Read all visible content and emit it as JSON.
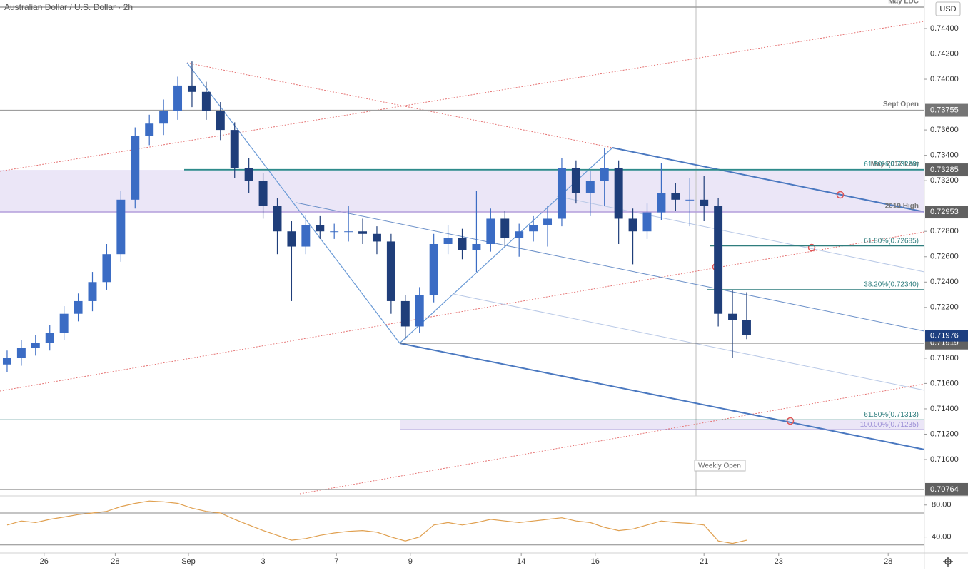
{
  "chart_data": {
    "type": "candlestick",
    "title": "Australian Dollar / U.S. Dollar · 2h",
    "currency": "USD",
    "up_color": "#3b6cc4",
    "down_color": "#1f3e7a",
    "xlim": [
      0,
      65
    ],
    "xticks": [
      {
        "value": 3.1,
        "label": "26"
      },
      {
        "value": 8.1,
        "label": "28"
      },
      {
        "value": 13.25,
        "label": "Sep"
      },
      {
        "value": 18.5,
        "label": "3"
      },
      {
        "value": 23.65,
        "label": "7"
      },
      {
        "value": 28.85,
        "label": "9"
      },
      {
        "value": 36.65,
        "label": "14"
      },
      {
        "value": 41.85,
        "label": "16"
      },
      {
        "value": 49.5,
        "label": "21"
      },
      {
        "value": 54.75,
        "label": "23"
      },
      {
        "value": 62.45,
        "label": "28"
      }
    ],
    "ylim": [
      0.70713,
      0.74625
    ],
    "yticks": [
      {
        "value": 0.744,
        "label": "0.74400"
      },
      {
        "value": 0.742,
        "label": "0.74200"
      },
      {
        "value": 0.74,
        "label": "0.74000"
      },
      {
        "value": 0.736,
        "label": "0.73600"
      },
      {
        "value": 0.734,
        "label": "0.73400"
      },
      {
        "value": 0.732,
        "label": "0.73200"
      },
      {
        "value": 0.728,
        "label": "0.72800"
      },
      {
        "value": 0.726,
        "label": "0.72600"
      },
      {
        "value": 0.724,
        "label": "0.72400"
      },
      {
        "value": 0.722,
        "label": "0.72200"
      },
      {
        "value": 0.718,
        "label": "0.71800"
      },
      {
        "value": 0.716,
        "label": "0.71600"
      },
      {
        "value": 0.714,
        "label": "0.71400"
      },
      {
        "value": 0.712,
        "label": "0.71200"
      },
      {
        "value": 0.71,
        "label": "0.71000"
      }
    ],
    "open": [
      0.7175,
      0.718,
      0.7188,
      0.7192,
      0.72,
      0.7215,
      0.7225,
      0.724,
      0.7262,
      0.7305,
      0.7355,
      0.7365,
      0.7375,
      0.7395,
      0.739,
      0.7375,
      0.736,
      0.733,
      0.732,
      0.73,
      0.728,
      0.7268,
      0.7285,
      0.728,
      0.728,
      0.728,
      0.7278,
      0.7272,
      0.7225,
      0.7205,
      0.723,
      0.727,
      0.7275,
      0.7265,
      0.727,
      0.729,
      0.7275,
      0.728,
      0.7285,
      0.729,
      0.733,
      0.731,
      0.732,
      0.733,
      0.729,
      0.728,
      0.7295,
      0.731,
      0.7305,
      0.7305,
      0.73,
      0.7215,
      0.721
    ],
    "high": [
      0.7186,
      0.7194,
      0.7198,
      0.7206,
      0.7221,
      0.7231,
      0.7248,
      0.727,
      0.7312,
      0.7362,
      0.7372,
      0.7384,
      0.7402,
      0.7414,
      0.7398,
      0.7382,
      0.7366,
      0.7338,
      0.7326,
      0.7306,
      0.7288,
      0.7293,
      0.7292,
      0.7286,
      0.73,
      0.729,
      0.7284,
      0.7278,
      0.723,
      0.7236,
      0.7278,
      0.7285,
      0.7282,
      0.7312,
      0.7298,
      0.7296,
      0.7286,
      0.7292,
      0.73,
      0.7338,
      0.7336,
      0.7328,
      0.7346,
      0.7336,
      0.7298,
      0.7302,
      0.7334,
      0.7318,
      0.7322,
      0.7324,
      0.7306,
      0.7234,
      0.7232
    ],
    "low": [
      0.7169,
      0.7174,
      0.7182,
      0.7186,
      0.7194,
      0.7209,
      0.7217,
      0.7234,
      0.7256,
      0.7298,
      0.7348,
      0.7356,
      0.7368,
      0.7378,
      0.7368,
      0.7352,
      0.7322,
      0.731,
      0.729,
      0.7262,
      0.7225,
      0.7262,
      0.7274,
      0.7274,
      0.7272,
      0.727,
      0.7262,
      0.7215,
      0.7195,
      0.72,
      0.7224,
      0.7262,
      0.7258,
      0.7248,
      0.7264,
      0.7268,
      0.726,
      0.7272,
      0.7268,
      0.7284,
      0.7302,
      0.7292,
      0.73,
      0.727,
      0.7254,
      0.7274,
      0.7289,
      0.7296,
      0.7284,
      0.7288,
      0.7205,
      0.718,
      0.7195
    ],
    "close": [
      0.718,
      0.7188,
      0.7192,
      0.72,
      0.7215,
      0.7225,
      0.724,
      0.7262,
      0.7305,
      0.7355,
      0.7365,
      0.7375,
      0.7395,
      0.739,
      0.7375,
      0.736,
      0.733,
      0.732,
      0.73,
      0.728,
      0.7268,
      0.7285,
      0.728,
      0.728,
      0.728,
      0.7278,
      0.7272,
      0.7225,
      0.7205,
      0.723,
      0.727,
      0.7275,
      0.7265,
      0.727,
      0.729,
      0.7275,
      0.728,
      0.7285,
      0.729,
      0.733,
      0.731,
      0.732,
      0.733,
      0.729,
      0.728,
      0.7295,
      0.731,
      0.7305,
      0.7305,
      0.73,
      0.7215,
      0.721,
      0.7198
    ],
    "levels": [
      {
        "value": 0.74569,
        "name": "May LDC",
        "color": "#9e9e9e"
      },
      {
        "value": 0.73755,
        "name": "Sept Open",
        "color": "#9e9e9e"
      },
      {
        "value": 0.73285,
        "name": "May 2017 Low",
        "color": "#2e8b8b"
      },
      {
        "value": 0.72953,
        "name": "2019 High",
        "color": "#b39ddb"
      },
      {
        "value": 0.71919,
        "color": "#757575"
      },
      {
        "value": 0.70764,
        "color": "#9e9e9e"
      }
    ],
    "fib_levels": [
      {
        "value": 0.73288,
        "label": "61.80%(0.73288)",
        "color": "#2e8b8b"
      },
      {
        "value": 0.72685,
        "label": "61.80%(0.72685)",
        "color": "#2e7d7d"
      },
      {
        "value": 0.7234,
        "label": "38.20%(0.72340)",
        "color": "#2e7d7d"
      },
      {
        "value": 0.71313,
        "label": "61.80%(0.71313)",
        "color": "#2e7d7d"
      },
      {
        "value": 0.71235,
        "label": "100.00%(0.71235)",
        "color": "#9c8fd6"
      }
    ],
    "zones": [
      {
        "from": 0.72953,
        "to": 0.73285,
        "color": "#ebe6f7"
      },
      {
        "from": 0.71235,
        "to": 0.71313,
        "color": "#ebe6f7"
      }
    ],
    "last_price": {
      "value": 0.71976,
      "color": "#1e3f80"
    },
    "annotation": "Weekly Open",
    "rsi": {
      "type": "line",
      "color": "#e0a050",
      "values": [
        55,
        60,
        58,
        62,
        65,
        68,
        70,
        72,
        78,
        82,
        85,
        84,
        82,
        76,
        72,
        70,
        62,
        55,
        48,
        42,
        36,
        38,
        42,
        45,
        47,
        48,
        46,
        40,
        35,
        40,
        55,
        58,
        55,
        58,
        62,
        60,
        58,
        60,
        62,
        64,
        60,
        58,
        52,
        48,
        50,
        55,
        60,
        58,
        57,
        55,
        35,
        32,
        36
      ],
      "ylim": [
        20,
        89.6
      ],
      "yticks": [
        {
          "value": 80,
          "label": "80.00"
        },
        {
          "value": 40,
          "label": "40.00"
        }
      ],
      "bands": [
        30,
        70
      ]
    }
  }
}
